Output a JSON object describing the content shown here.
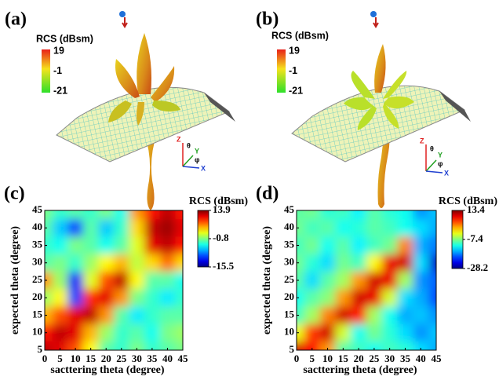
{
  "panels": [
    {
      "label": "(a)",
      "colorbar_title": "RCS (dBsm)",
      "colorbar_ticks": [
        19,
        -1,
        -21
      ],
      "axis_glyphs": [
        "Z",
        "θ",
        "Y",
        "φ",
        "X"
      ]
    },
    {
      "label": "(b)",
      "colorbar_title": "RCS (dBsm)",
      "colorbar_ticks": [
        19,
        -1,
        -21
      ],
      "axis_glyphs": [
        "Z",
        "θ",
        "Y",
        "φ",
        "X"
      ]
    }
  ],
  "chart_data": [
    {
      "type": "heatmap",
      "panel_label": "(c)",
      "x_label": "sacttering theta (degree)",
      "y_label": "expected theta (degree)",
      "colorbar_title": "RCS (dBsm)",
      "x": [
        0,
        5,
        10,
        15,
        20,
        25,
        30,
        35,
        40,
        45
      ],
      "y": [
        5,
        10,
        15,
        20,
        25,
        30,
        35,
        40,
        45
      ],
      "z": [
        [
          12,
          11,
          8,
          3,
          -2,
          -3,
          -1,
          -3,
          -2,
          -1
        ],
        [
          10,
          12,
          11,
          5,
          0,
          -3,
          -2,
          -4,
          -1,
          0
        ],
        [
          5,
          8,
          11,
          12,
          6,
          -2,
          -5,
          -3,
          -2,
          -2
        ],
        [
          0,
          3,
          -10,
          9,
          11,
          6,
          -1,
          -3,
          -5,
          -3
        ],
        [
          6,
          0,
          -12,
          2,
          8,
          12,
          3,
          -2,
          -2,
          -4
        ],
        [
          -2,
          -1,
          -3,
          0,
          3,
          5,
          1,
          4,
          7,
          4
        ],
        [
          -3,
          -4,
          -1,
          -2,
          -4,
          -2,
          2,
          11,
          12,
          10
        ],
        [
          -2,
          -6,
          -10,
          -2,
          -6,
          -3,
          4,
          12,
          13,
          11
        ],
        [
          -1,
          -3,
          -2,
          -3,
          -1,
          -4,
          6,
          10,
          12,
          10
        ]
      ],
      "zlim": [
        -15.5,
        13.9
      ],
      "zticks": [
        13.9,
        -0.8,
        -15.5
      ],
      "xlim": [
        0,
        45
      ],
      "ylim": [
        5,
        45
      ],
      "xticks": [
        0,
        5,
        10,
        15,
        20,
        25,
        30,
        35,
        40,
        45
      ],
      "yticks": [
        5,
        10,
        15,
        20,
        25,
        30,
        35,
        40,
        45
      ]
    },
    {
      "type": "heatmap",
      "panel_label": "(d)",
      "x_label": "sacttering theta (degree)",
      "y_label": "expected theta (degree)",
      "colorbar_title": "RCS (dBsm)",
      "x": [
        0,
        5,
        10,
        15,
        20,
        25,
        30,
        35,
        40,
        45
      ],
      "y": [
        5,
        10,
        15,
        20,
        25,
        30,
        35,
        40,
        45
      ],
      "z": [
        [
          10,
          8,
          2,
          -9,
          -10,
          -12,
          -10,
          -11,
          -14,
          -16
        ],
        [
          -3,
          6,
          10,
          -4,
          -12,
          -8,
          -11,
          -14,
          -17,
          -15
        ],
        [
          -10,
          -6,
          3,
          10,
          7,
          -6,
          -12,
          -16,
          -15,
          -17
        ],
        [
          -12,
          -9,
          -7,
          2,
          10,
          9,
          -4,
          -14,
          -16,
          -20
        ],
        [
          -9,
          -14,
          -9,
          -6,
          2,
          10,
          9,
          -6,
          -17,
          -19
        ],
        [
          -8,
          -11,
          -14,
          -8,
          -10,
          -2,
          9,
          10,
          -14,
          -25
        ],
        [
          -10,
          -8,
          -12,
          -9,
          -13,
          -10,
          -8,
          3,
          -16,
          -18
        ],
        [
          -8,
          -10,
          -9,
          -12,
          -11,
          -9,
          -10,
          -12,
          -14,
          -16
        ],
        [
          -9,
          -8,
          -11,
          -10,
          -13,
          -9,
          -11,
          -12,
          -17,
          -15
        ]
      ],
      "zlim": [
        -28.2,
        13.4
      ],
      "zticks": [
        13.4,
        -7.4,
        -28.2
      ],
      "xlim": [
        0,
        45
      ],
      "ylim": [
        5,
        45
      ],
      "xticks": [
        0,
        5,
        10,
        15,
        20,
        25,
        30,
        35,
        40,
        45
      ],
      "yticks": [
        5,
        10,
        15,
        20,
        25,
        30,
        35,
        40,
        45
      ]
    }
  ]
}
